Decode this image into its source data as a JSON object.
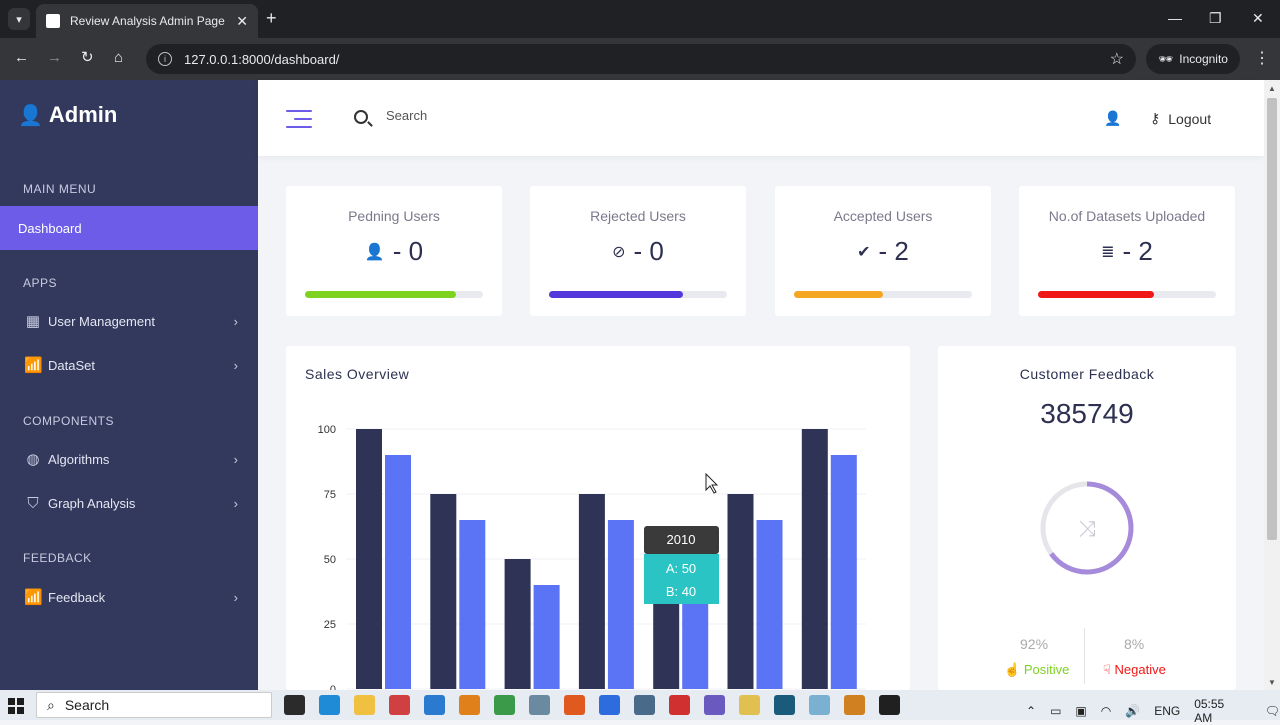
{
  "browser": {
    "tab_title": "Review Analysis Admin Page",
    "url": "127.0.0.1:8000/dashboard/",
    "profile_label": "Incognito"
  },
  "sidebar": {
    "brand": "Admin",
    "sections": {
      "main_menu": "MAIN MENU",
      "apps": "APPS",
      "components": "COMPONENTS",
      "feedback": "FEEDBACK"
    },
    "active_item": "Dashboard",
    "items": [
      {
        "label": "User Management",
        "icon": "users-icon"
      },
      {
        "label": "DataSet",
        "icon": "chart-icon"
      },
      {
        "label": "Algorithms",
        "icon": "globe-icon"
      },
      {
        "label": "Graph Analysis",
        "icon": "shield-icon"
      },
      {
        "label": "Feedback",
        "icon": "chart-icon"
      }
    ]
  },
  "header": {
    "search_placeholder": "Search",
    "logout_label": "Logout"
  },
  "stats": [
    {
      "title": "Pedning Users",
      "value": "- 0",
      "icon": "user-icon",
      "progress": 0.85,
      "color": "#7ed321"
    },
    {
      "title": "Rejected Users",
      "value": "- 0",
      "icon": "ban-icon",
      "progress": 0.75,
      "color": "#5438dc"
    },
    {
      "title": "Accepted Users",
      "value": "- 2",
      "icon": "check-icon",
      "progress": 0.5,
      "color": "#f5a623"
    },
    {
      "title": "No.of Datasets Uploaded",
      "value": "- 2",
      "icon": "database-icon",
      "progress": 0.65,
      "color": "#f01717"
    }
  ],
  "sales": {
    "title": "Sales Overview",
    "tooltip": {
      "title": "2010",
      "a": "A: 50",
      "b": "B: 40"
    }
  },
  "chart_data": {
    "type": "bar",
    "categories": [
      "",
      "",
      "",
      "",
      "",
      "",
      ""
    ],
    "series": [
      {
        "name": "A",
        "values": [
          100,
          75,
          50,
          75,
          50,
          75,
          100
        ],
        "color": "#2f3457"
      },
      {
        "name": "B",
        "values": [
          90,
          65,
          40,
          65,
          40,
          65,
          90
        ],
        "color": "#5b73f5"
      }
    ],
    "yticks": [
      "0",
      "25",
      "50",
      "75",
      "100"
    ],
    "ylim": [
      0,
      100
    ],
    "grid": true
  },
  "feedback": {
    "title": "Customer Feedback",
    "total": "385749",
    "positive_pct": "92%",
    "negative_pct": "8%",
    "positive_label": "Positive",
    "negative_label": "Negative",
    "positive_color": "#7ed321",
    "negative_color": "#f01717",
    "ring_color": "#a78bdb",
    "ring_fraction": 0.65
  },
  "taskbar": {
    "search_label": "Search",
    "lang": "ENG",
    "time": "05:55 AM"
  }
}
